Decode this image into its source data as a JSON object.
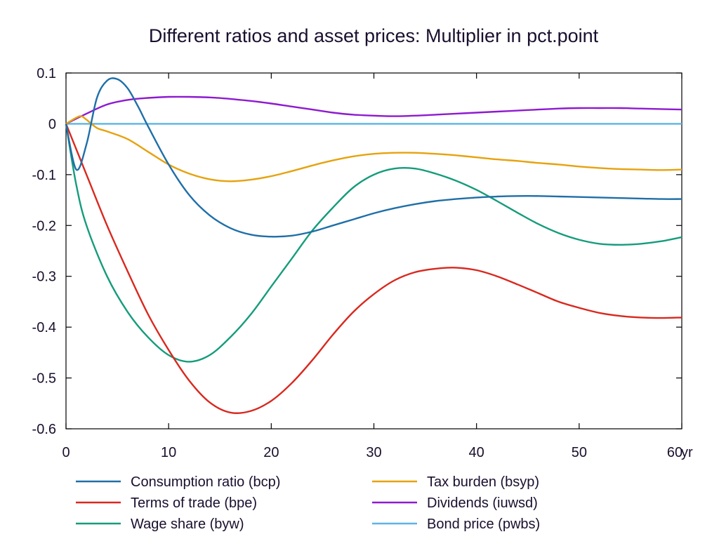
{
  "chart_data": {
    "type": "line",
    "title": "Different ratios and asset prices: Multiplier in pct.point",
    "x_unit_label": "yr",
    "xlim": [
      0,
      60
    ],
    "ylim": [
      -0.6,
      0.1
    ],
    "x_ticks": [
      0,
      10,
      20,
      30,
      40,
      50,
      60
    ],
    "x_tick_labels": [
      "0",
      "10",
      "20",
      "30",
      "40",
      "50",
      "60"
    ],
    "y_ticks": [
      0.1,
      0,
      -0.1,
      -0.2,
      -0.3,
      -0.4,
      -0.5,
      -0.6
    ],
    "y_tick_labels": [
      "0.1",
      "0",
      "-0.1",
      "-0.2",
      "-0.3",
      "-0.4",
      "-0.5",
      "-0.6"
    ],
    "zero_line": true,
    "grid": false,
    "legend_position": "bottom",
    "series": [
      {
        "name": "Consumption ratio (bcp)",
        "color": "#1f6fa8",
        "points": [
          [
            0,
            0
          ],
          [
            1,
            -0.09
          ],
          [
            2,
            -0.04
          ],
          [
            3,
            0.05
          ],
          [
            4,
            0.085
          ],
          [
            5,
            0.088
          ],
          [
            6,
            0.07
          ],
          [
            7,
            0.035
          ],
          [
            8,
            -0.005
          ],
          [
            10,
            -0.08
          ],
          [
            12,
            -0.14
          ],
          [
            14,
            -0.18
          ],
          [
            16,
            -0.205
          ],
          [
            18,
            -0.218
          ],
          [
            20,
            -0.222
          ],
          [
            22,
            -0.22
          ],
          [
            24,
            -0.212
          ],
          [
            26,
            -0.2
          ],
          [
            28,
            -0.188
          ],
          [
            30,
            -0.176
          ],
          [
            32,
            -0.166
          ],
          [
            34,
            -0.158
          ],
          [
            36,
            -0.152
          ],
          [
            38,
            -0.148
          ],
          [
            40,
            -0.145
          ],
          [
            42,
            -0.143
          ],
          [
            44,
            -0.142
          ],
          [
            46,
            -0.142
          ],
          [
            48,
            -0.143
          ],
          [
            50,
            -0.144
          ],
          [
            52,
            -0.145
          ],
          [
            54,
            -0.146
          ],
          [
            56,
            -0.147
          ],
          [
            58,
            -0.148
          ],
          [
            60,
            -0.148
          ]
        ]
      },
      {
        "name": "Terms of trade (bpe)",
        "color": "#d9281e",
        "points": [
          [
            0,
            0
          ],
          [
            2,
            -0.1
          ],
          [
            4,
            -0.2
          ],
          [
            6,
            -0.29
          ],
          [
            8,
            -0.375
          ],
          [
            10,
            -0.445
          ],
          [
            12,
            -0.505
          ],
          [
            14,
            -0.548
          ],
          [
            16,
            -0.568
          ],
          [
            18,
            -0.565
          ],
          [
            20,
            -0.545
          ],
          [
            22,
            -0.51
          ],
          [
            24,
            -0.465
          ],
          [
            26,
            -0.415
          ],
          [
            28,
            -0.37
          ],
          [
            30,
            -0.335
          ],
          [
            32,
            -0.308
          ],
          [
            34,
            -0.292
          ],
          [
            36,
            -0.285
          ],
          [
            38,
            -0.283
          ],
          [
            40,
            -0.288
          ],
          [
            42,
            -0.3
          ],
          [
            44,
            -0.316
          ],
          [
            46,
            -0.333
          ],
          [
            48,
            -0.35
          ],
          [
            50,
            -0.362
          ],
          [
            52,
            -0.372
          ],
          [
            54,
            -0.378
          ],
          [
            56,
            -0.381
          ],
          [
            58,
            -0.382
          ],
          [
            60,
            -0.381
          ]
        ]
      },
      {
        "name": "Wage share (byw)",
        "color": "#159c7c",
        "points": [
          [
            0,
            0
          ],
          [
            1,
            -0.12
          ],
          [
            2,
            -0.2
          ],
          [
            4,
            -0.3
          ],
          [
            6,
            -0.37
          ],
          [
            8,
            -0.42
          ],
          [
            10,
            -0.455
          ],
          [
            12,
            -0.468
          ],
          [
            14,
            -0.455
          ],
          [
            16,
            -0.42
          ],
          [
            18,
            -0.375
          ],
          [
            20,
            -0.32
          ],
          [
            22,
            -0.265
          ],
          [
            24,
            -0.21
          ],
          [
            26,
            -0.165
          ],
          [
            28,
            -0.125
          ],
          [
            30,
            -0.1
          ],
          [
            32,
            -0.088
          ],
          [
            34,
            -0.088
          ],
          [
            36,
            -0.098
          ],
          [
            38,
            -0.112
          ],
          [
            40,
            -0.13
          ],
          [
            42,
            -0.152
          ],
          [
            44,
            -0.175
          ],
          [
            46,
            -0.197
          ],
          [
            48,
            -0.215
          ],
          [
            50,
            -0.228
          ],
          [
            52,
            -0.236
          ],
          [
            54,
            -0.238
          ],
          [
            56,
            -0.236
          ],
          [
            58,
            -0.231
          ],
          [
            60,
            -0.223
          ]
        ]
      },
      {
        "name": "Tax burden (bsyp)",
        "color": "#e6a20e",
        "points": [
          [
            0,
            0
          ],
          [
            1,
            0.012
          ],
          [
            1.5,
            0.015
          ],
          [
            2,
            0.008
          ],
          [
            3,
            -0.008
          ],
          [
            4,
            -0.015
          ],
          [
            6,
            -0.03
          ],
          [
            8,
            -0.055
          ],
          [
            10,
            -0.08
          ],
          [
            12,
            -0.098
          ],
          [
            14,
            -0.109
          ],
          [
            16,
            -0.113
          ],
          [
            18,
            -0.11
          ],
          [
            20,
            -0.103
          ],
          [
            22,
            -0.093
          ],
          [
            24,
            -0.082
          ],
          [
            26,
            -0.072
          ],
          [
            28,
            -0.064
          ],
          [
            30,
            -0.059
          ],
          [
            32,
            -0.057
          ],
          [
            34,
            -0.057
          ],
          [
            36,
            -0.059
          ],
          [
            38,
            -0.062
          ],
          [
            40,
            -0.066
          ],
          [
            42,
            -0.07
          ],
          [
            44,
            -0.073
          ],
          [
            46,
            -0.077
          ],
          [
            48,
            -0.08
          ],
          [
            50,
            -0.084
          ],
          [
            52,
            -0.087
          ],
          [
            54,
            -0.089
          ],
          [
            56,
            -0.09
          ],
          [
            58,
            -0.091
          ],
          [
            60,
            -0.09
          ]
        ]
      },
      {
        "name": "Dividends (iuwsd)",
        "color": "#8e1ad0",
        "points": [
          [
            0,
            0
          ],
          [
            2,
            0.02
          ],
          [
            4,
            0.038
          ],
          [
            6,
            0.047
          ],
          [
            8,
            0.051
          ],
          [
            10,
            0.053
          ],
          [
            12,
            0.053
          ],
          [
            14,
            0.052
          ],
          [
            16,
            0.049
          ],
          [
            18,
            0.045
          ],
          [
            20,
            0.04
          ],
          [
            22,
            0.034
          ],
          [
            24,
            0.028
          ],
          [
            26,
            0.022
          ],
          [
            28,
            0.018
          ],
          [
            30,
            0.016
          ],
          [
            32,
            0.015
          ],
          [
            34,
            0.016
          ],
          [
            36,
            0.018
          ],
          [
            38,
            0.02
          ],
          [
            40,
            0.022
          ],
          [
            42,
            0.024
          ],
          [
            44,
            0.026
          ],
          [
            46,
            0.028
          ],
          [
            48,
            0.03
          ],
          [
            50,
            0.031
          ],
          [
            52,
            0.031
          ],
          [
            54,
            0.031
          ],
          [
            56,
            0.03
          ],
          [
            58,
            0.029
          ],
          [
            60,
            0.028
          ]
        ]
      },
      {
        "name": "Bond price (pwbs)",
        "color": "#5ab4e5",
        "points": [
          [
            0,
            0
          ],
          [
            60,
            0
          ]
        ]
      }
    ]
  }
}
